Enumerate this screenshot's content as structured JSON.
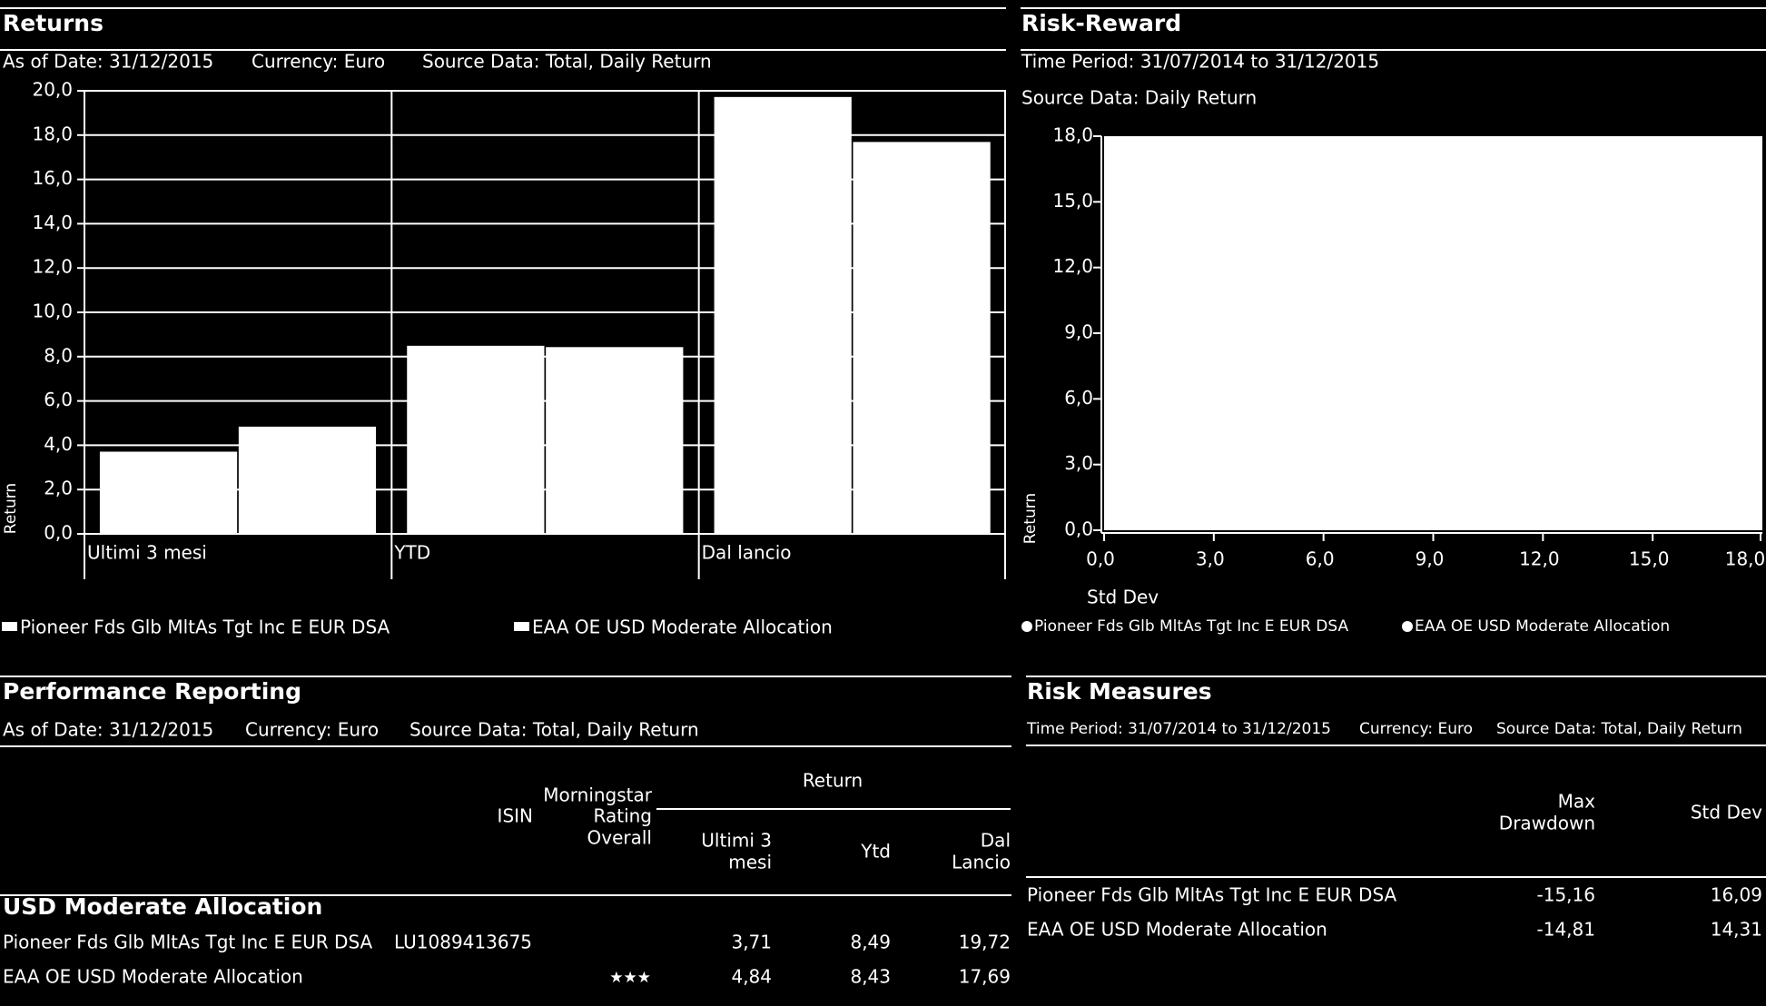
{
  "chart_data": [
    {
      "type": "bar",
      "title": "Returns",
      "subtitle": [
        "As of Date: 31/12/2015",
        "Currency: Euro",
        "Source Data: Total, Daily Return"
      ],
      "y_label": "Return",
      "categories": [
        "Ultimi 3 mesi",
        "YTD",
        "Dal lancio"
      ],
      "series": [
        {
          "name": "Pioneer Fds Glb MltAs Tgt Inc E EUR DSA",
          "color": "#ffffff",
          "values": [
            3.71,
            8.49,
            19.72
          ]
        },
        {
          "name": "EAA OE USD Moderate Allocation",
          "color": "#ffffff",
          "values": [
            4.84,
            8.43,
            17.69
          ]
        }
      ],
      "ylim": [
        0,
        20
      ],
      "yticks": [
        {
          "value": 0,
          "label": "0,0"
        },
        {
          "value": 2,
          "label": "2,0"
        },
        {
          "value": 4,
          "label": "4,0"
        },
        {
          "value": 6,
          "label": "6,0"
        },
        {
          "value": 8,
          "label": "8,0"
        },
        {
          "value": 10,
          "label": "10,0"
        },
        {
          "value": 12,
          "label": "12,0"
        },
        {
          "value": 14,
          "label": "14,0"
        },
        {
          "value": 16,
          "label": "16,0"
        },
        {
          "value": 18,
          "label": "18,0"
        },
        {
          "value": 20,
          "label": "20,0"
        }
      ],
      "grid": true
    },
    {
      "type": "scatter",
      "title": "Risk-Reward",
      "subtitle": [
        "Time Period: 31/07/2014 to 31/12/2015",
        "Source Data: Daily Return"
      ],
      "x_label": "Std Dev",
      "y_label": "Return",
      "series": [
        {
          "name": "Pioneer Fds Glb MltAs Tgt Inc E EUR DSA",
          "color": "#ffffff"
        },
        {
          "name": "EAA OE USD Moderate Allocation",
          "color": "#ffffff"
        }
      ],
      "xlim": [
        0,
        18
      ],
      "ylim": [
        0,
        18
      ],
      "xticks": [
        {
          "value": 0,
          "label": "0,0"
        },
        {
          "value": 3,
          "label": "3,0"
        },
        {
          "value": 6,
          "label": "6,0"
        },
        {
          "value": 9,
          "label": "9,0"
        },
        {
          "value": 12,
          "label": "12,0"
        },
        {
          "value": 15,
          "label": "15,0"
        },
        {
          "value": 18,
          "label": "18,0"
        }
      ],
      "yticks": [
        {
          "value": 0,
          "label": "0,0"
        },
        {
          "value": 3,
          "label": "3,0"
        },
        {
          "value": 6,
          "label": "6,0"
        },
        {
          "value": 9,
          "label": "9,0"
        },
        {
          "value": 12,
          "label": "12,0"
        },
        {
          "value": 15,
          "label": "15,0"
        },
        {
          "value": 18,
          "label": "18,0"
        }
      ],
      "grid": false
    }
  ],
  "performance_reporting": {
    "title": "Performance Reporting",
    "subtitle": [
      "As of Date: 31/12/2015",
      "Currency: Euro",
      "Source Data: Total, Daily Return"
    ],
    "return_header": "Return",
    "headers": {
      "isin": "ISIN",
      "rating": [
        "Morningstar",
        "Rating",
        "Overall"
      ],
      "q3": [
        "Ultimi 3",
        "mesi"
      ],
      "ytd": "Ytd",
      "since": [
        "Dal",
        "Lancio"
      ]
    },
    "group": "USD Moderate Allocation",
    "rows": [
      [
        "Pioneer Fds Glb MltAs Tgt Inc E EUR DSA",
        "LU1089413675",
        null,
        "3,71",
        "8,49",
        "19,72"
      ],
      [
        "EAA OE USD Moderate Allocation",
        null,
        "★★★",
        "4,84",
        "8,43",
        "17,69"
      ]
    ]
  },
  "risk_measures": {
    "title": "Risk Measures",
    "subtitle": [
      "Time Period: 31/07/2014 to 31/12/2015",
      "Currency: Euro",
      "Source Data: Total, Daily Return"
    ],
    "headers": {
      "drawdown": [
        "Max",
        "Drawdown"
      ],
      "std": "Std Dev"
    },
    "rows": [
      [
        "Pioneer Fds Glb MltAs Tgt Inc E EUR DSA",
        "-15,16",
        "16,09"
      ],
      [
        "EAA OE USD Moderate Allocation",
        "-14,81",
        "14,31"
      ]
    ]
  }
}
